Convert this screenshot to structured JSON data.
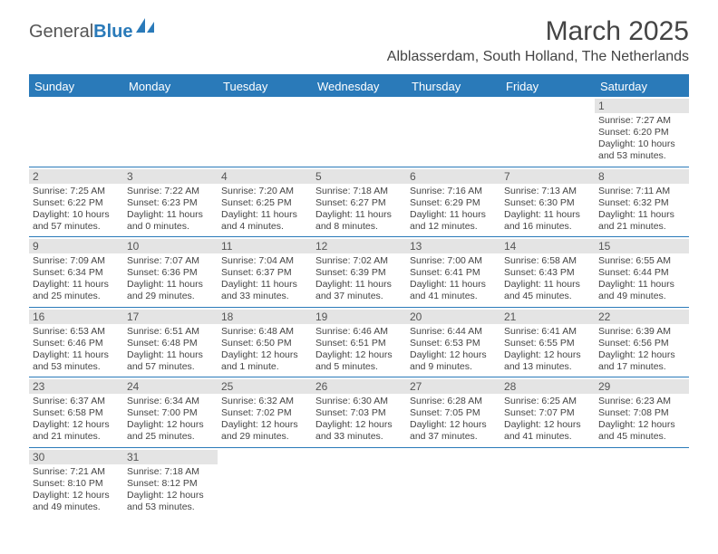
{
  "logo": {
    "part1": "General",
    "part2": "Blue"
  },
  "title": "March 2025",
  "subtitle": "Alblasserdam, South Holland, The Netherlands",
  "colors": {
    "brand": "#2a7ab9",
    "daybar_bg": "#e4e4e4",
    "text": "#444444",
    "bg": "#ffffff"
  },
  "typography": {
    "title_fontsize": 30,
    "subtitle_fontsize": 16,
    "dayhead_fontsize": 13,
    "daynum_fontsize": 12,
    "body_fontsize": 10.5
  },
  "day_headers": [
    "Sunday",
    "Monday",
    "Tuesday",
    "Wednesday",
    "Thursday",
    "Friday",
    "Saturday"
  ],
  "weeks": [
    [
      {
        "blank": true
      },
      {
        "blank": true
      },
      {
        "blank": true
      },
      {
        "blank": true
      },
      {
        "blank": true
      },
      {
        "blank": true
      },
      {
        "n": "1",
        "sunrise": "Sunrise: 7:27 AM",
        "sunset": "Sunset: 6:20 PM",
        "daylight": "Daylight: 10 hours and 53 minutes."
      }
    ],
    [
      {
        "n": "2",
        "sunrise": "Sunrise: 7:25 AM",
        "sunset": "Sunset: 6:22 PM",
        "daylight": "Daylight: 10 hours and 57 minutes."
      },
      {
        "n": "3",
        "sunrise": "Sunrise: 7:22 AM",
        "sunset": "Sunset: 6:23 PM",
        "daylight": "Daylight: 11 hours and 0 minutes."
      },
      {
        "n": "4",
        "sunrise": "Sunrise: 7:20 AM",
        "sunset": "Sunset: 6:25 PM",
        "daylight": "Daylight: 11 hours and 4 minutes."
      },
      {
        "n": "5",
        "sunrise": "Sunrise: 7:18 AM",
        "sunset": "Sunset: 6:27 PM",
        "daylight": "Daylight: 11 hours and 8 minutes."
      },
      {
        "n": "6",
        "sunrise": "Sunrise: 7:16 AM",
        "sunset": "Sunset: 6:29 PM",
        "daylight": "Daylight: 11 hours and 12 minutes."
      },
      {
        "n": "7",
        "sunrise": "Sunrise: 7:13 AM",
        "sunset": "Sunset: 6:30 PM",
        "daylight": "Daylight: 11 hours and 16 minutes."
      },
      {
        "n": "8",
        "sunrise": "Sunrise: 7:11 AM",
        "sunset": "Sunset: 6:32 PM",
        "daylight": "Daylight: 11 hours and 21 minutes."
      }
    ],
    [
      {
        "n": "9",
        "sunrise": "Sunrise: 7:09 AM",
        "sunset": "Sunset: 6:34 PM",
        "daylight": "Daylight: 11 hours and 25 minutes."
      },
      {
        "n": "10",
        "sunrise": "Sunrise: 7:07 AM",
        "sunset": "Sunset: 6:36 PM",
        "daylight": "Daylight: 11 hours and 29 minutes."
      },
      {
        "n": "11",
        "sunrise": "Sunrise: 7:04 AM",
        "sunset": "Sunset: 6:37 PM",
        "daylight": "Daylight: 11 hours and 33 minutes."
      },
      {
        "n": "12",
        "sunrise": "Sunrise: 7:02 AM",
        "sunset": "Sunset: 6:39 PM",
        "daylight": "Daylight: 11 hours and 37 minutes."
      },
      {
        "n": "13",
        "sunrise": "Sunrise: 7:00 AM",
        "sunset": "Sunset: 6:41 PM",
        "daylight": "Daylight: 11 hours and 41 minutes."
      },
      {
        "n": "14",
        "sunrise": "Sunrise: 6:58 AM",
        "sunset": "Sunset: 6:43 PM",
        "daylight": "Daylight: 11 hours and 45 minutes."
      },
      {
        "n": "15",
        "sunrise": "Sunrise: 6:55 AM",
        "sunset": "Sunset: 6:44 PM",
        "daylight": "Daylight: 11 hours and 49 minutes."
      }
    ],
    [
      {
        "n": "16",
        "sunrise": "Sunrise: 6:53 AM",
        "sunset": "Sunset: 6:46 PM",
        "daylight": "Daylight: 11 hours and 53 minutes."
      },
      {
        "n": "17",
        "sunrise": "Sunrise: 6:51 AM",
        "sunset": "Sunset: 6:48 PM",
        "daylight": "Daylight: 11 hours and 57 minutes."
      },
      {
        "n": "18",
        "sunrise": "Sunrise: 6:48 AM",
        "sunset": "Sunset: 6:50 PM",
        "daylight": "Daylight: 12 hours and 1 minute."
      },
      {
        "n": "19",
        "sunrise": "Sunrise: 6:46 AM",
        "sunset": "Sunset: 6:51 PM",
        "daylight": "Daylight: 12 hours and 5 minutes."
      },
      {
        "n": "20",
        "sunrise": "Sunrise: 6:44 AM",
        "sunset": "Sunset: 6:53 PM",
        "daylight": "Daylight: 12 hours and 9 minutes."
      },
      {
        "n": "21",
        "sunrise": "Sunrise: 6:41 AM",
        "sunset": "Sunset: 6:55 PM",
        "daylight": "Daylight: 12 hours and 13 minutes."
      },
      {
        "n": "22",
        "sunrise": "Sunrise: 6:39 AM",
        "sunset": "Sunset: 6:56 PM",
        "daylight": "Daylight: 12 hours and 17 minutes."
      }
    ],
    [
      {
        "n": "23",
        "sunrise": "Sunrise: 6:37 AM",
        "sunset": "Sunset: 6:58 PM",
        "daylight": "Daylight: 12 hours and 21 minutes."
      },
      {
        "n": "24",
        "sunrise": "Sunrise: 6:34 AM",
        "sunset": "Sunset: 7:00 PM",
        "daylight": "Daylight: 12 hours and 25 minutes."
      },
      {
        "n": "25",
        "sunrise": "Sunrise: 6:32 AM",
        "sunset": "Sunset: 7:02 PM",
        "daylight": "Daylight: 12 hours and 29 minutes."
      },
      {
        "n": "26",
        "sunrise": "Sunrise: 6:30 AM",
        "sunset": "Sunset: 7:03 PM",
        "daylight": "Daylight: 12 hours and 33 minutes."
      },
      {
        "n": "27",
        "sunrise": "Sunrise: 6:28 AM",
        "sunset": "Sunset: 7:05 PM",
        "daylight": "Daylight: 12 hours and 37 minutes."
      },
      {
        "n": "28",
        "sunrise": "Sunrise: 6:25 AM",
        "sunset": "Sunset: 7:07 PM",
        "daylight": "Daylight: 12 hours and 41 minutes."
      },
      {
        "n": "29",
        "sunrise": "Sunrise: 6:23 AM",
        "sunset": "Sunset: 7:08 PM",
        "daylight": "Daylight: 12 hours and 45 minutes."
      }
    ],
    [
      {
        "n": "30",
        "sunrise": "Sunrise: 7:21 AM",
        "sunset": "Sunset: 8:10 PM",
        "daylight": "Daylight: 12 hours and 49 minutes."
      },
      {
        "n": "31",
        "sunrise": "Sunrise: 7:18 AM",
        "sunset": "Sunset: 8:12 PM",
        "daylight": "Daylight: 12 hours and 53 minutes."
      },
      {
        "blank": true
      },
      {
        "blank": true
      },
      {
        "blank": true
      },
      {
        "blank": true
      },
      {
        "blank": true
      }
    ]
  ]
}
